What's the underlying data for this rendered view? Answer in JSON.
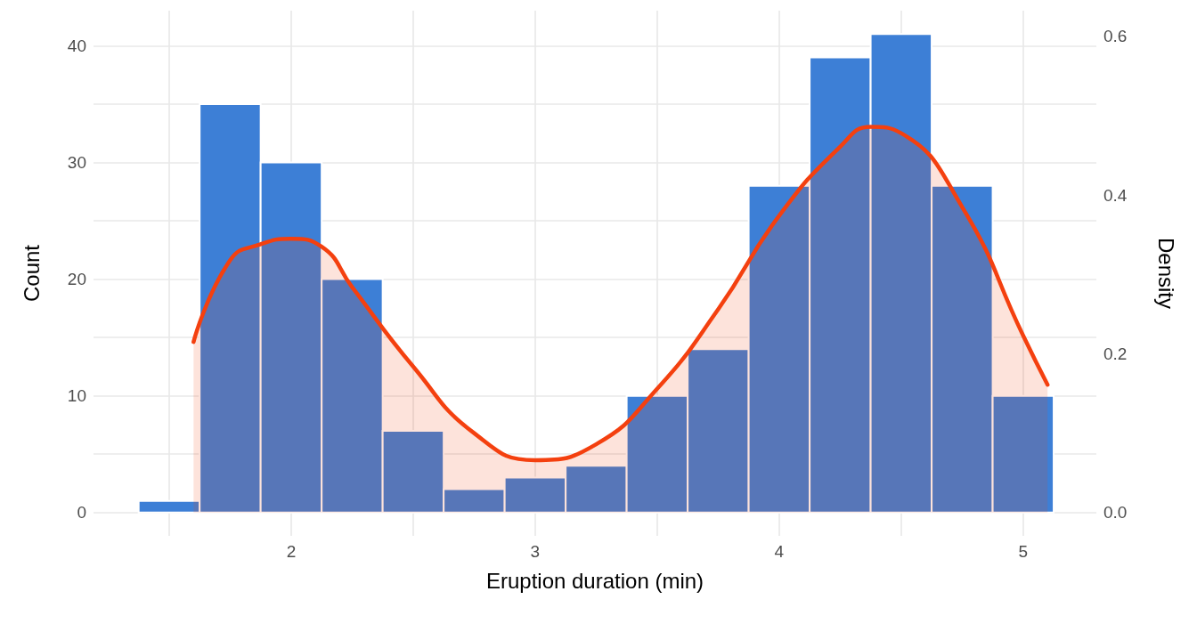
{
  "chart_data": {
    "type": "histogram",
    "xlabel": "Eruption duration (min)",
    "ylabel": "Count",
    "y2label": "Density",
    "bins": [
      1.375,
      1.625,
      1.875,
      2.125,
      2.375,
      2.625,
      2.875,
      3.125,
      3.375,
      3.625,
      3.875,
      4.125,
      4.375,
      4.625,
      4.875,
      5.125
    ],
    "series": [
      {
        "color": "#3d7fd6",
        "values": [
          1,
          35,
          30,
          20,
          7,
          2,
          3,
          4,
          10,
          14,
          28,
          39,
          41,
          28,
          10
        ]
      },
      {
        "type": "area",
        "axis": "y2",
        "color": "#f4400f",
        "x": [
          1.6,
          1.75,
          1.875,
          2.0,
          2.125,
          2.25,
          2.5,
          2.75,
          3.0,
          3.25,
          3.5,
          3.75,
          4.0,
          4.25,
          4.375,
          4.5,
          4.75,
          5.0,
          5.1
        ],
        "values": [
          0.215,
          0.318,
          0.338,
          0.345,
          0.335,
          0.284,
          0.184,
          0.1,
          0.066,
          0.086,
          0.156,
          0.256,
          0.374,
          0.461,
          0.486,
          0.478,
          0.385,
          0.223,
          0.161
        ]
      }
    ],
    "xlim": [
      1.19,
      5.3
    ],
    "xticks": [
      {
        "value": 1.5,
        "label": null
      },
      2,
      {
        "value": 2.5,
        "label": null
      },
      3,
      {
        "value": 3.5,
        "label": null
      },
      4,
      {
        "value": 4.5,
        "label": null
      },
      5
    ],
    "ylim": [
      -2,
      43
    ],
    "yticks": [
      0,
      {
        "value": 5,
        "label": null
      },
      10,
      {
        "value": 15,
        "label": null
      },
      20,
      {
        "value": 25,
        "label": null
      },
      30,
      {
        "value": 35,
        "label": null
      },
      40
    ],
    "y2lim": [
      -0.0294,
      0.6324
    ],
    "y2ticks": [
      {
        "value": 0,
        "label": "0.0"
      },
      0.2,
      0.4,
      0.6
    ],
    "grid": true
  }
}
